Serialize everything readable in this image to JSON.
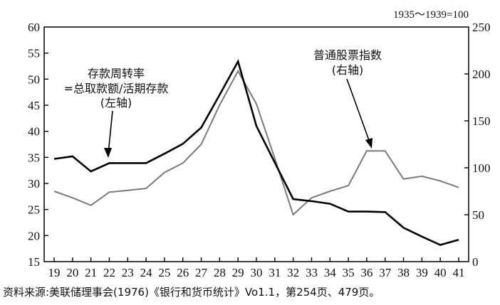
{
  "chart_data": {
    "type": "line",
    "x": [
      "19",
      "20",
      "21",
      "22",
      "23",
      "24",
      "25",
      "26",
      "27",
      "28",
      "29",
      "30",
      "31",
      "32",
      "33",
      "34",
      "35",
      "36",
      "37",
      "38",
      "39",
      "40",
      "41"
    ],
    "left_axis": {
      "ylim": [
        15,
        60
      ],
      "ticks": [
        "15",
        "20",
        "25",
        "30",
        "35",
        "40",
        "45",
        "50",
        "55",
        "60"
      ]
    },
    "right_axis": {
      "ylim": [
        0,
        250
      ],
      "ticks": [
        "0",
        "50",
        "100",
        "150",
        "200",
        "250"
      ],
      "note": "1935～1939=100"
    },
    "series": [
      {
        "name": "存款周转率=总取款额/活期存款",
        "axis": "left",
        "color": "#000000",
        "values": [
          34.7,
          35.2,
          32.3,
          33.9,
          33.9,
          33.9,
          35.7,
          37.6,
          40.7,
          47.0,
          53.4,
          41.0,
          34.0,
          27.0,
          26.6,
          26.1,
          24.6,
          24.6,
          24.5,
          21.5,
          19.8,
          18.2,
          19.2
        ]
      },
      {
        "name": "普通股票指数",
        "axis": "right",
        "color": "#7a7a7a",
        "values": [
          75,
          68,
          60,
          74,
          76,
          78,
          95,
          105,
          125,
          167,
          203,
          168,
          110,
          50,
          68,
          75,
          81,
          118,
          118,
          88,
          91,
          86,
          79
        ]
      }
    ],
    "annotations": {
      "left_series": [
        "存款周转率",
        "=总取款额/活期存款",
        "(左轴)"
      ],
      "right_series": [
        "普通股票指数",
        "(右轴)"
      ]
    },
    "source": "资料来源:美联储理事会(1976)《银行和货币统计》Vo1.1，第254页、479页。"
  }
}
